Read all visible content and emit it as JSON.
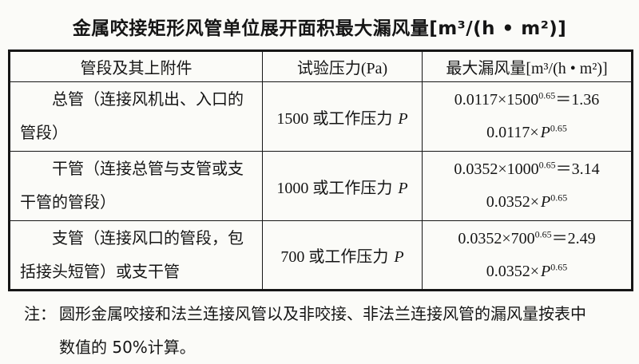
{
  "title": {
    "text": "金属咬接矩形风管单位展开面积最大漏风量[m³/(h • m²)]"
  },
  "table": {
    "headers": {
      "segment": "管段及其上附件",
      "pressure": "试验压力(Pa)",
      "leakage": "最大漏风量[m³/(h • m²)]"
    },
    "rows": [
      {
        "segment": "总管（连接风机出、入口的管段）",
        "pressure_text": "1500 或工作压力 ",
        "pressure_symbol": "P",
        "f1_base": "0.0117×1500",
        "f1_exp": "0.65",
        "f1_result": "＝1.36",
        "f2_coef": "0.0117×",
        "f2_var": "P",
        "f2_exp": "0.65"
      },
      {
        "segment": "干管（连接总管与支管或支干管的管段）",
        "pressure_text": "1000 或工作压力 ",
        "pressure_symbol": "P",
        "f1_base": "0.0352×1000",
        "f1_exp": "0.65",
        "f1_result": "＝3.14",
        "f2_coef": "0.0352×",
        "f2_var": "P",
        "f2_exp": "0.65"
      },
      {
        "segment": "支管（连接风口的管段，包括接头短管）或支干管",
        "pressure_text": "700 或工作压力 ",
        "pressure_symbol": "P",
        "f1_base": "0.0352×700",
        "f1_exp": "0.65",
        "f1_result": "＝2.49",
        "f2_coef": "0.0352×",
        "f2_var": "P",
        "f2_exp": "0.65"
      }
    ]
  },
  "note": {
    "label": "注：",
    "text": "圆形金属咬接和法兰连接风管以及非咬接、非法兰连接风管的漏风量按表中数值的 50%计算。"
  }
}
